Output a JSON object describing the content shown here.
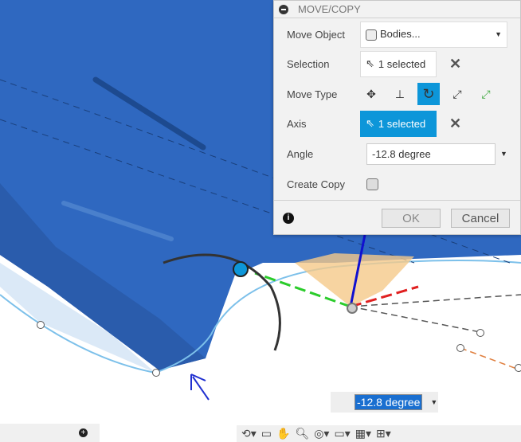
{
  "dialog": {
    "title": "MOVE/COPY",
    "move_object_label": "Move Object",
    "move_object_value": "Bodies...",
    "selection_label": "Selection",
    "selection_value": "1 selected",
    "move_type_label": "Move Type",
    "move_types": [
      "free-move-icon",
      "translate-icon",
      "rotate-icon",
      "point-to-point-icon",
      "point-to-position-icon"
    ],
    "active_move_type": "rotate-icon",
    "axis_label": "Axis",
    "axis_value": "1 selected",
    "angle_label": "Angle",
    "angle_value": "-12.8 degree",
    "create_copy_label": "Create Copy",
    "create_copy_checked": false,
    "ok_label": "OK",
    "cancel_label": "Cancel"
  },
  "viewport": {
    "angle_input": "-12.8 degree"
  },
  "colors": {
    "accent": "#0d96d9",
    "body": "#2f68c0"
  }
}
